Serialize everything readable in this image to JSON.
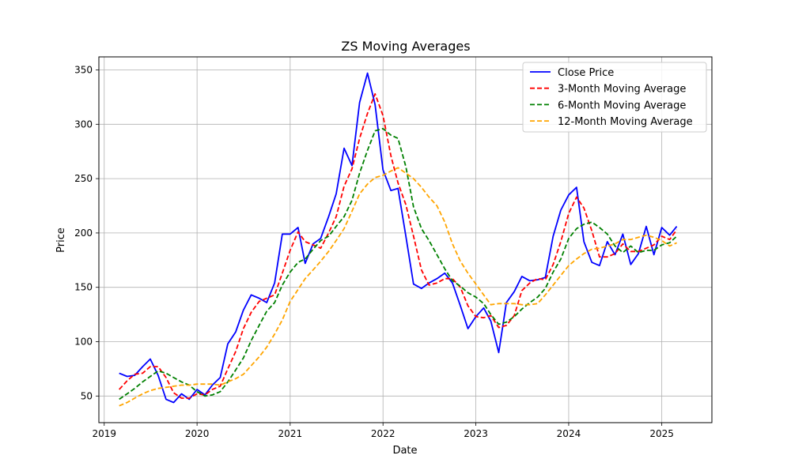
{
  "chart_data": {
    "type": "line",
    "title": "ZS Moving Averages",
    "xlabel": "Date",
    "ylabel": "Price",
    "xlim": [
      "2018-12-11",
      "2025-07-17"
    ],
    "ylim": [
      25.5,
      362
    ],
    "x_ticks": [
      "2019-01-01",
      "2020-01-01",
      "2021-01-01",
      "2022-01-01",
      "2023-01-01",
      "2024-01-01",
      "2025-01-01"
    ],
    "x_tick_labels": [
      "2019",
      "2020",
      "2021",
      "2022",
      "2023",
      "2024",
      "2025"
    ],
    "y_ticks": [
      50,
      100,
      150,
      200,
      250,
      300,
      350
    ],
    "y_tick_labels": [
      "50",
      "100",
      "150",
      "200",
      "250",
      "300",
      "350"
    ],
    "grid": true,
    "legend_position": "top-right",
    "start_month": "2019-03",
    "x": [
      "2019-03",
      "2019-04",
      "2019-05",
      "2019-06",
      "2019-07",
      "2019-08",
      "2019-09",
      "2019-10",
      "2019-11",
      "2019-12",
      "2020-01",
      "2020-02",
      "2020-03",
      "2020-04",
      "2020-05",
      "2020-06",
      "2020-07",
      "2020-08",
      "2020-09",
      "2020-10",
      "2020-11",
      "2020-12",
      "2021-01",
      "2021-02",
      "2021-03",
      "2021-04",
      "2021-05",
      "2021-06",
      "2021-07",
      "2021-08",
      "2021-09",
      "2021-10",
      "2021-11",
      "2021-12",
      "2022-01",
      "2022-02",
      "2022-03",
      "2022-04",
      "2022-05",
      "2022-06",
      "2022-07",
      "2022-08",
      "2022-09",
      "2022-10",
      "2022-11",
      "2022-12",
      "2023-01",
      "2023-02",
      "2023-03",
      "2023-04",
      "2023-05",
      "2023-06",
      "2023-07",
      "2023-08",
      "2023-09",
      "2023-10",
      "2023-11",
      "2023-12",
      "2024-01",
      "2024-02",
      "2024-03",
      "2024-04",
      "2024-05",
      "2024-06",
      "2024-07",
      "2024-08",
      "2024-09",
      "2024-10",
      "2024-11",
      "2024-12",
      "2025-01",
      "2025-02",
      "2025-03"
    ],
    "series": [
      {
        "name": "Close Price",
        "color": "#0000ff",
        "style": "solid",
        "values": [
          71,
          68,
          69,
          77,
          84,
          69,
          47,
          44,
          52,
          47,
          56,
          51,
          60,
          67,
          98,
          109,
          129,
          143,
          140,
          136,
          154,
          199,
          199,
          205,
          172,
          190,
          195,
          215,
          236,
          278,
          262,
          320,
          347,
          318,
          258,
          239,
          241,
          197,
          153,
          149,
          154,
          158,
          163,
          154,
          133,
          112,
          123,
          131,
          119,
          90,
          136,
          146,
          160,
          156,
          157,
          159,
          197,
          221,
          235,
          242,
          192,
          173,
          170,
          192,
          180,
          199,
          171,
          181,
          206,
          180,
          205,
          198,
          206
        ]
      },
      {
        "name": "3-Month Moving Average",
        "color": "#ff0000",
        "style": "dashed",
        "values": [
          56,
          64,
          70,
          71,
          77,
          77,
          67,
          53,
          48,
          48,
          52,
          51,
          56,
          59,
          75,
          91,
          112,
          127,
          137,
          140,
          143,
          163,
          184,
          201,
          192,
          189,
          186,
          200,
          215,
          243,
          259,
          287,
          310,
          328,
          308,
          271,
          246,
          226,
          197,
          166,
          152,
          154,
          158,
          158,
          150,
          133,
          123,
          122,
          124,
          113,
          115,
          124,
          147,
          154,
          158,
          157,
          171,
          192,
          218,
          233,
          223,
          202,
          178,
          178,
          181,
          190,
          183,
          183,
          186,
          189,
          197,
          194,
          203
        ]
      },
      {
        "name": "6-Month Moving Average",
        "color": "#008000",
        "style": "dashed",
        "values": [
          47,
          52,
          57,
          63,
          68,
          73,
          71,
          67,
          63,
          60,
          54,
          50,
          51,
          54,
          63,
          74,
          85,
          101,
          115,
          128,
          136,
          152,
          164,
          173,
          176,
          185,
          193,
          197,
          206,
          215,
          230,
          255,
          276,
          294,
          296,
          290,
          287,
          261,
          224,
          204,
          193,
          180,
          167,
          156,
          151,
          145,
          141,
          135,
          125,
          116,
          118,
          123,
          130,
          136,
          141,
          149,
          164,
          176,
          195,
          204,
          208,
          210,
          205,
          199,
          188,
          182,
          188,
          182,
          184,
          184,
          189,
          191,
          197
        ]
      },
      {
        "name": "12-Month Moving Average",
        "color": "#ffa500",
        "style": "dashed",
        "values": [
          41,
          44,
          48,
          52,
          55,
          57,
          58,
          59,
          60,
          60,
          61,
          61,
          61,
          60,
          63,
          66,
          70,
          78,
          86,
          95,
          107,
          120,
          137,
          148,
          158,
          166,
          174,
          183,
          193,
          204,
          220,
          236,
          245,
          251,
          253,
          257,
          260,
          255,
          250,
          242,
          233,
          225,
          210,
          190,
          174,
          163,
          153,
          143,
          134,
          135,
          135,
          135,
          134,
          134,
          135,
          143,
          152,
          161,
          170,
          176,
          181,
          185,
          186,
          188,
          190,
          194,
          194,
          196,
          198,
          196,
          193,
          188,
          191
        ]
      }
    ]
  }
}
